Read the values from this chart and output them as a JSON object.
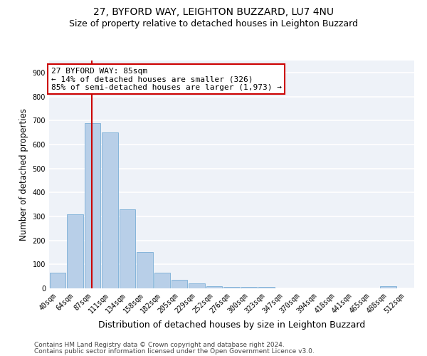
{
  "title_line1": "27, BYFORD WAY, LEIGHTON BUZZARD, LU7 4NU",
  "title_line2": "Size of property relative to detached houses in Leighton Buzzard",
  "xlabel": "Distribution of detached houses by size in Leighton Buzzard",
  "ylabel": "Number of detached properties",
  "footer_line1": "Contains HM Land Registry data © Crown copyright and database right 2024.",
  "footer_line2": "Contains public sector information licensed under the Open Government Licence v3.0.",
  "annotation_title": "27 BYFORD WAY: 85sqm",
  "annotation_line1": "← 14% of detached houses are smaller (326)",
  "annotation_line2": "85% of semi-detached houses are larger (1,973) →",
  "bar_categories": [
    "40sqm",
    "64sqm",
    "87sqm",
    "111sqm",
    "134sqm",
    "158sqm",
    "182sqm",
    "205sqm",
    "229sqm",
    "252sqm",
    "276sqm",
    "300sqm",
    "323sqm",
    "347sqm",
    "370sqm",
    "394sqm",
    "418sqm",
    "441sqm",
    "465sqm",
    "488sqm",
    "512sqm"
  ],
  "bar_values": [
    65,
    310,
    690,
    650,
    330,
    150,
    65,
    35,
    20,
    10,
    5,
    5,
    7,
    0,
    0,
    0,
    0,
    0,
    0,
    8,
    0
  ],
  "bar_color": "#b8cfe8",
  "bar_edge_color": "#7aaed6",
  "vline_color": "#cc0000",
  "ylim": [
    0,
    950
  ],
  "yticks": [
    0,
    100,
    200,
    300,
    400,
    500,
    600,
    700,
    800,
    900
  ],
  "annotation_box_color": "#cc0000",
  "bg_color": "#eef2f8",
  "grid_color": "#ffffff",
  "title1_fontsize": 10,
  "title2_fontsize": 9,
  "ylabel_fontsize": 8.5,
  "xlabel_fontsize": 9,
  "tick_fontsize": 7,
  "footer_fontsize": 6.5,
  "annot_fontsize": 8
}
